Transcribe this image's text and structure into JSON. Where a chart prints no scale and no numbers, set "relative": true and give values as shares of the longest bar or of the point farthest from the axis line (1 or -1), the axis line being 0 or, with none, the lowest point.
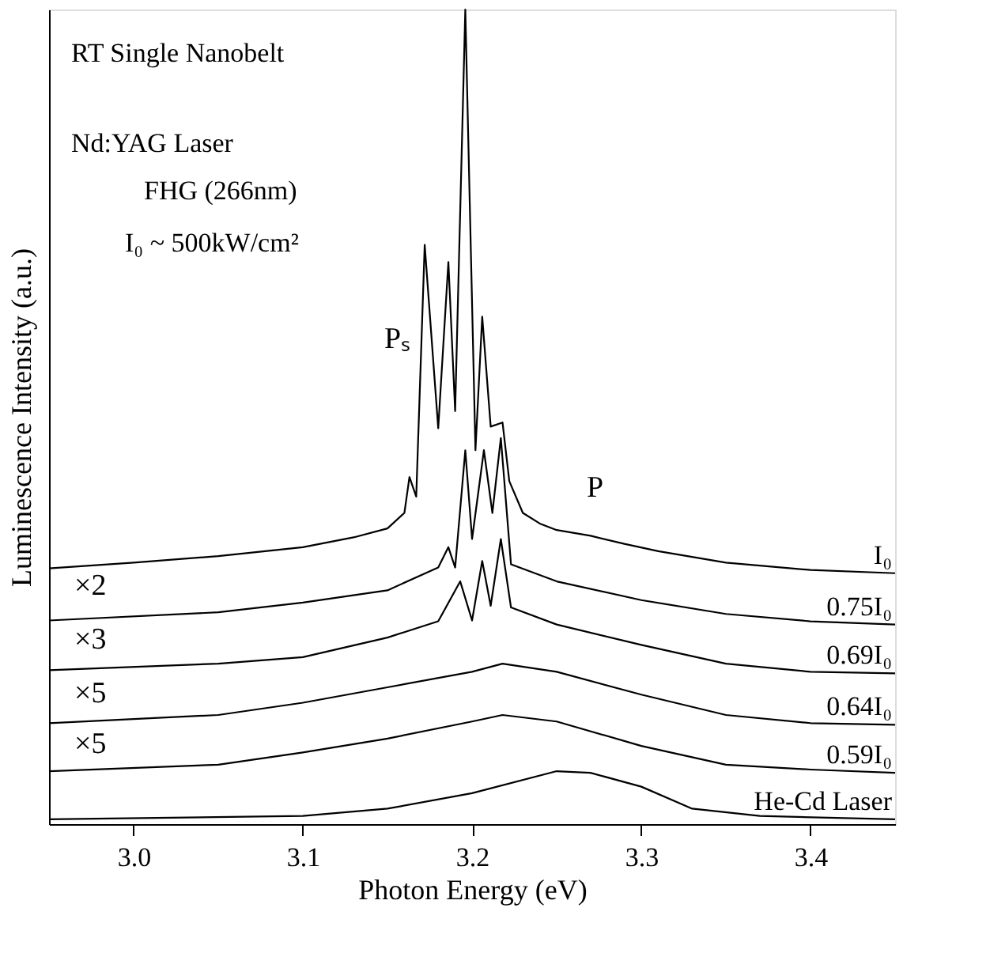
{
  "chart_data": {
    "type": "line",
    "relative": true,
    "xlabel": "Photon Energy (eV)",
    "ylabel": "Luminescence Intensity (a.u.)",
    "xlim": [
      2.95,
      3.45
    ],
    "xticks": [
      {
        "value": 3.0,
        "label": "3.0"
      },
      {
        "value": 3.1,
        "label": "3.1"
      },
      {
        "value": 3.2,
        "label": "3.2"
      },
      {
        "value": 3.3,
        "label": "3.3"
      },
      {
        "value": 3.4,
        "label": "3.4"
      }
    ],
    "tick_labels": "x",
    "grid": false,
    "legend": false,
    "marker": "none",
    "line_style": "solid",
    "series": [
      {
        "name": "I₀",
        "color": "#000000",
        "x": [
          2.95,
          3.0,
          3.05,
          3.1,
          3.13,
          3.15,
          3.16,
          3.163,
          3.167,
          3.172,
          3.18,
          3.186,
          3.19,
          3.196,
          3.202,
          3.206,
          3.211,
          3.218,
          3.222,
          3.23,
          3.24,
          3.25,
          3.27,
          3.29,
          3.31,
          3.35,
          3.4,
          3.45
        ],
        "values": [
          0.314,
          0.321,
          0.329,
          0.34,
          0.352,
          0.363,
          0.382,
          0.426,
          0.402,
          0.711,
          0.486,
          0.69,
          0.507,
          1.0,
          0.459,
          0.623,
          0.488,
          0.493,
          0.421,
          0.382,
          0.369,
          0.361,
          0.354,
          0.344,
          0.335,
          0.321,
          0.312,
          0.308
        ]
      },
      {
        "name": "0.75I₀",
        "color": "#000000",
        "x": [
          2.95,
          3.05,
          3.1,
          3.15,
          3.18,
          3.186,
          3.19,
          3.196,
          3.2,
          3.207,
          3.212,
          3.217,
          3.223,
          3.25,
          3.3,
          3.35,
          3.4,
          3.45
        ],
        "values": [
          0.25,
          0.26,
          0.272,
          0.287,
          0.315,
          0.34,
          0.315,
          0.459,
          0.35,
          0.459,
          0.382,
          0.474,
          0.319,
          0.298,
          0.275,
          0.258,
          0.249,
          0.245
        ]
      },
      {
        "name": "0.69I₀",
        "color": "#000000",
        "x": [
          2.95,
          3.05,
          3.1,
          3.15,
          3.18,
          3.193,
          3.2,
          3.206,
          3.211,
          3.217,
          3.223,
          3.25,
          3.3,
          3.35,
          3.4,
          3.45
        ],
        "values": [
          0.189,
          0.197,
          0.205,
          0.229,
          0.249,
          0.298,
          0.25,
          0.323,
          0.268,
          0.35,
          0.266,
          0.245,
          0.22,
          0.197,
          0.187,
          0.185
        ]
      },
      {
        "name": "0.64I₀",
        "color": "#000000",
        "x": [
          2.95,
          3.05,
          3.1,
          3.15,
          3.2,
          3.218,
          3.25,
          3.3,
          3.35,
          3.4,
          3.45
        ],
        "values": [
          0.124,
          0.134,
          0.149,
          0.168,
          0.187,
          0.197,
          0.187,
          0.159,
          0.134,
          0.124,
          0.122
        ]
      },
      {
        "name": "0.59I₀",
        "color": "#000000",
        "x": [
          2.95,
          3.05,
          3.1,
          3.15,
          3.2,
          3.218,
          3.25,
          3.3,
          3.35,
          3.4,
          3.45
        ],
        "values": [
          0.065,
          0.073,
          0.088,
          0.105,
          0.126,
          0.134,
          0.126,
          0.096,
          0.073,
          0.067,
          0.063
        ]
      },
      {
        "name": "He-Cd Laser",
        "color": "#000000",
        "x": [
          2.95,
          3.1,
          3.15,
          3.2,
          3.25,
          3.27,
          3.3,
          3.33,
          3.37,
          3.45
        ],
        "values": [
          0.006,
          0.01,
          0.019,
          0.038,
          0.065,
          0.063,
          0.046,
          0.019,
          0.01,
          0.006
        ]
      }
    ],
    "annotations": [
      "RT   Single Nanobelt",
      "Nd:YAG Laser",
      "FHG (266nm)",
      "I₀ ~ 500kW/cm²",
      "×2",
      "×3",
      "×5",
      "×5",
      "Pₛ",
      "P"
    ]
  }
}
